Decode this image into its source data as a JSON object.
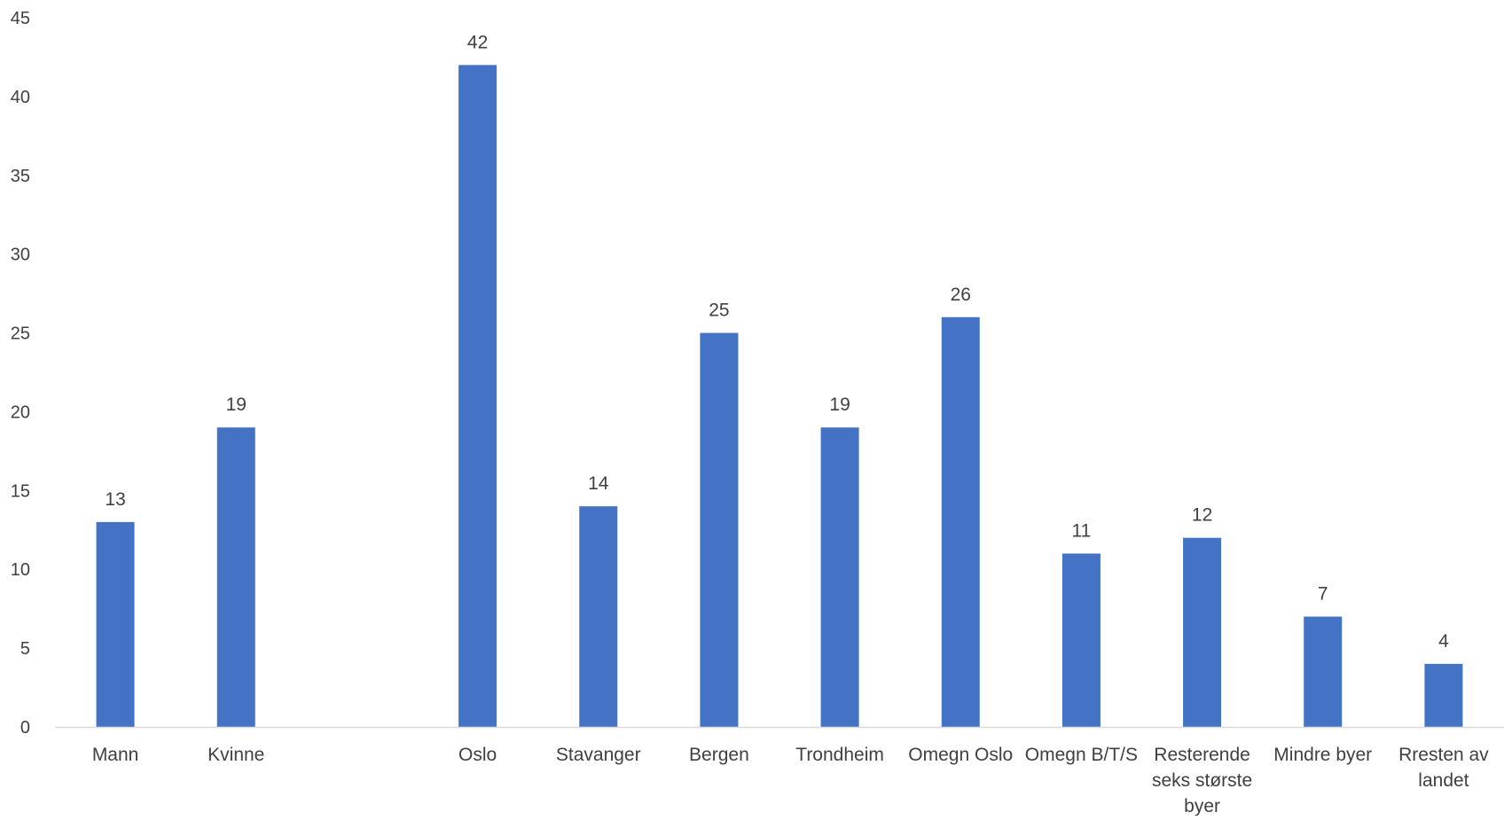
{
  "chart_data": {
    "type": "bar",
    "categories": [
      "Mann",
      "Kvinne",
      "",
      "Oslo",
      "Stavanger",
      "Bergen",
      "Trondheim",
      "Omegn Oslo",
      "Omegn B/T/S",
      "Resterende seks største byer",
      "Mindre byer",
      "Rresten av landet"
    ],
    "category_lines": [
      [
        "Mann"
      ],
      [
        "Kvinne"
      ],
      [],
      [
        "Oslo"
      ],
      [
        "Stavanger"
      ],
      [
        "Bergen"
      ],
      [
        "Trondheim"
      ],
      [
        "Omegn Oslo"
      ],
      [
        "Omegn B/T/S"
      ],
      [
        "Resterende",
        "seks største",
        "byer"
      ],
      [
        "Mindre byer"
      ],
      [
        "Rresten av",
        "landet"
      ]
    ],
    "values": [
      13,
      19,
      null,
      42,
      14,
      25,
      19,
      26,
      11,
      12,
      7,
      4
    ],
    "data_labels": [
      "13",
      "19",
      "",
      "42",
      "14",
      "25",
      "19",
      "26",
      "11",
      "12",
      "7",
      "4"
    ],
    "yticks": [
      "0",
      "5",
      "10",
      "15",
      "20",
      "25",
      "30",
      "35",
      "40",
      "45"
    ],
    "ylim": [
      0,
      45
    ],
    "title": "",
    "xlabel": "",
    "ylabel": "",
    "grid": false,
    "legend": "none",
    "colors": {
      "bar": "#4472C4",
      "axis": "#D9D9D9",
      "text": "#404040"
    }
  }
}
